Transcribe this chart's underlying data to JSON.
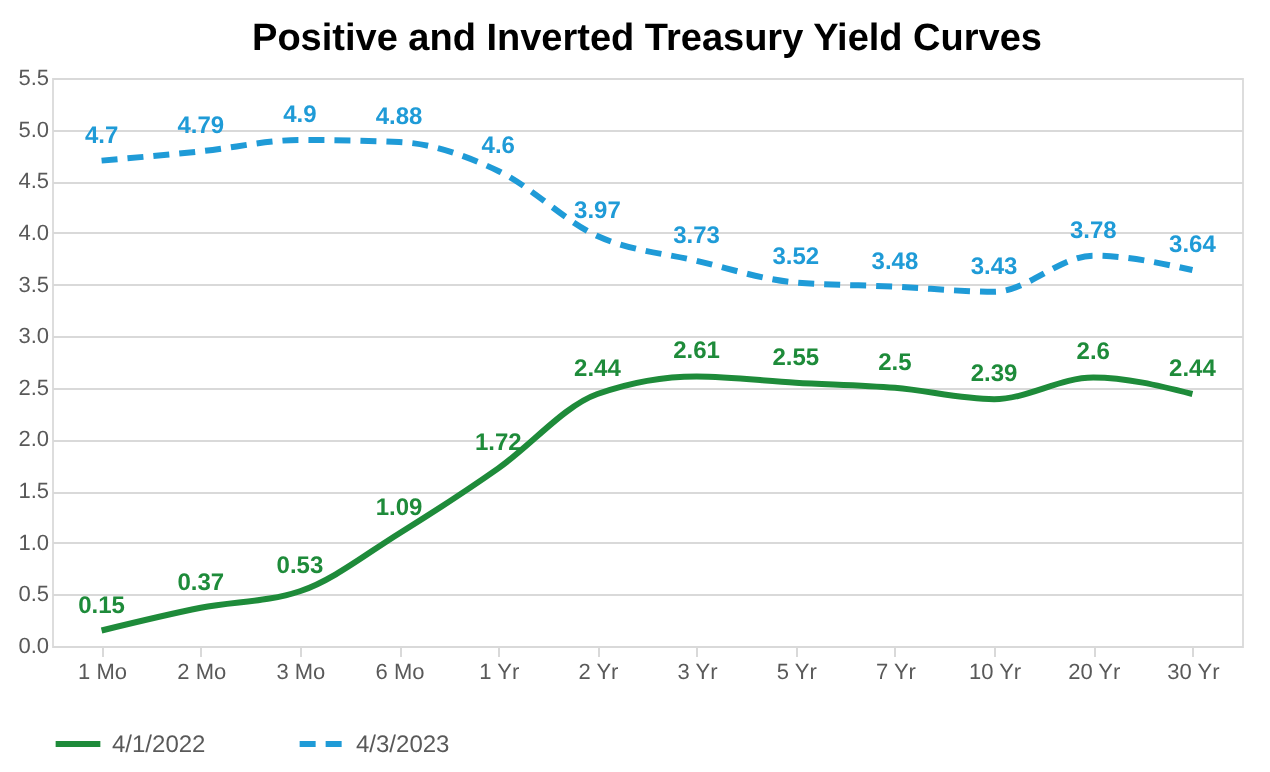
{
  "chart_data": {
    "type": "line",
    "title": "Positive and Inverted Treasury Yield Curves",
    "categories": [
      "1 Mo",
      "2 Mo",
      "3 Mo",
      "6 Mo",
      "1 Yr",
      "2 Yr",
      "3 Yr",
      "5 Yr",
      "7 Yr",
      "10 Yr",
      "20 Yr",
      "30 Yr"
    ],
    "series": [
      {
        "name": "4/1/2022",
        "color": "#1e8b3a",
        "line_style": "solid",
        "values": [
          0.15,
          0.37,
          0.53,
          1.09,
          1.72,
          2.44,
          2.61,
          2.55,
          2.5,
          2.39,
          2.6,
          2.44
        ]
      },
      {
        "name": "4/3/2023",
        "color": "#1f9bd7",
        "line_style": "dashed",
        "values": [
          4.7,
          4.79,
          4.9,
          4.88,
          4.6,
          3.97,
          3.73,
          3.52,
          3.48,
          3.43,
          3.78,
          3.64
        ]
      }
    ],
    "ylim": [
      0,
      5.5
    ],
    "yticks": [
      {
        "value": 0,
        "label": "0.0"
      },
      0.5,
      {
        "value": 1,
        "label": "1.0"
      },
      1.5,
      {
        "value": 2,
        "label": "2.0"
      },
      2.5,
      {
        "value": 3,
        "label": "3.0"
      },
      3.5,
      {
        "value": 4,
        "label": "4.0"
      },
      4.5,
      {
        "value": 5,
        "label": "5.0"
      },
      5.5
    ],
    "grid": "y",
    "legend": "bottom",
    "data_labels": true,
    "marker": "none"
  }
}
